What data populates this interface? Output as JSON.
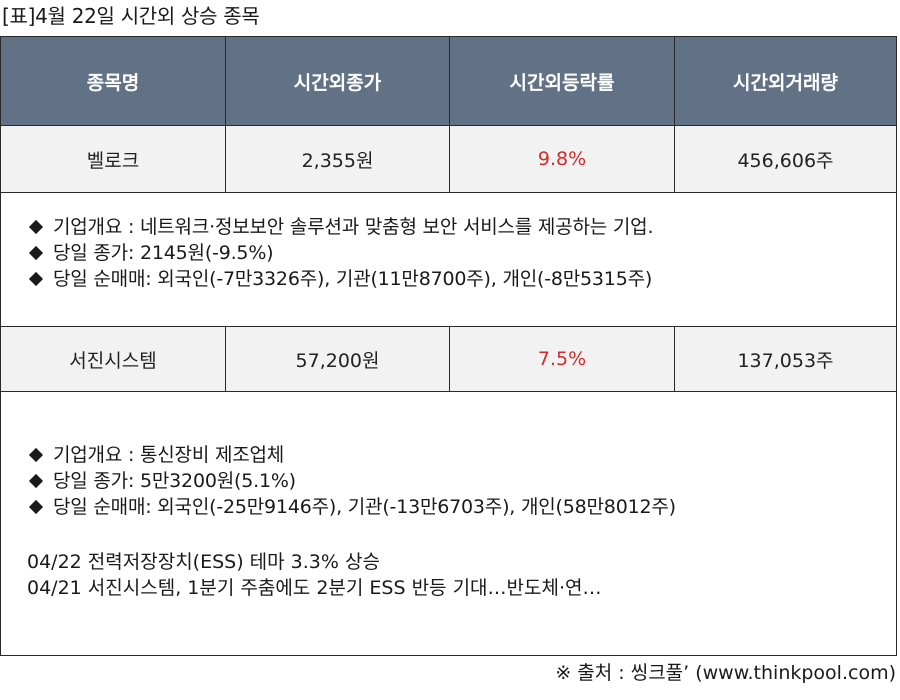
{
  "caption": "[표]4월 22일 시간외 상승 종목",
  "table": {
    "headers": [
      "종목명",
      "시간외종가",
      "시간외등락률",
      "시간외거래량"
    ],
    "rows": [
      {
        "name": "벨로크",
        "close": "2,355원",
        "change": "9.8%",
        "volume": "456,606주",
        "info": [
          "기업개요 : 네트워크·정보보안 솔루션과 맞춤형 보안 서비스를 제공하는 기업.",
          "당일 종가: 2145원(-9.5%)",
          "당일 순매매: 외국인(-7만3326주), 기관(11만8700주), 개인(-8만5315주)"
        ]
      },
      {
        "name": "서진시스템",
        "close": "57,200원",
        "change": "7.5%",
        "volume": "137,053주",
        "info": [
          "기업개요 : 통신장비 제조업체",
          "당일 종가: 5만3200원(5.1%)",
          "당일 순매매: 외국인(-25만9146주), 기관(-13만6703주), 개인(58만8012주)"
        ],
        "news": [
          "04/22 전력저장장치(ESS) 테마 3.3% 상승",
          "04/21 서진시스템, 1분기 주춤에도 2분기 ESS 반등 기대…반도체·연…"
        ]
      }
    ]
  },
  "source": "※ 출처 : 씽크풀’ (www.thinkpool.com)",
  "colors": {
    "header_bg": "#627286",
    "row_bg": "#f2f2f2",
    "change_text": "#d32b2b"
  }
}
